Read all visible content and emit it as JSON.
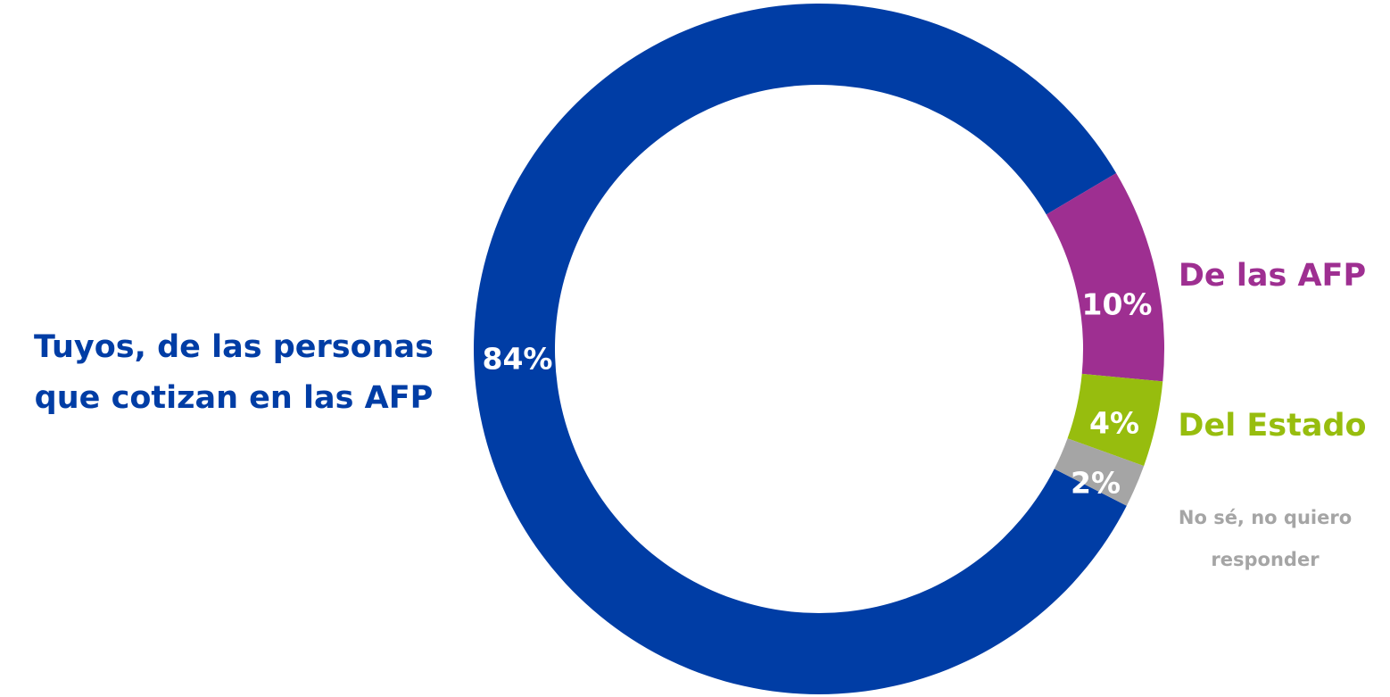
{
  "chart_data": {
    "type": "pie",
    "variant": "donut",
    "slices": [
      {
        "category": "Tuyos, de las personas que cotizan en las AFP",
        "category_lines": [
          "Tuyos, de las personas",
          "que cotizan en las AFP"
        ],
        "value": 84,
        "value_label": "84%",
        "color": "#003DA5"
      },
      {
        "category": "De las AFP",
        "category_lines": [
          "De las AFP"
        ],
        "value": 10,
        "value_label": "10%",
        "color": "#9E2F91"
      },
      {
        "category": "Del Estado",
        "category_lines": [
          "Del Estado"
        ],
        "value": 4,
        "value_label": "4%",
        "color": "#97BD0E"
      },
      {
        "category": "No sé, no quiero responder",
        "category_lines": [
          "No sé, no quiero",
          "responder"
        ],
        "value": 2,
        "value_label": "2%",
        "color": "#A5A5A5"
      }
    ],
    "legend": "none"
  }
}
